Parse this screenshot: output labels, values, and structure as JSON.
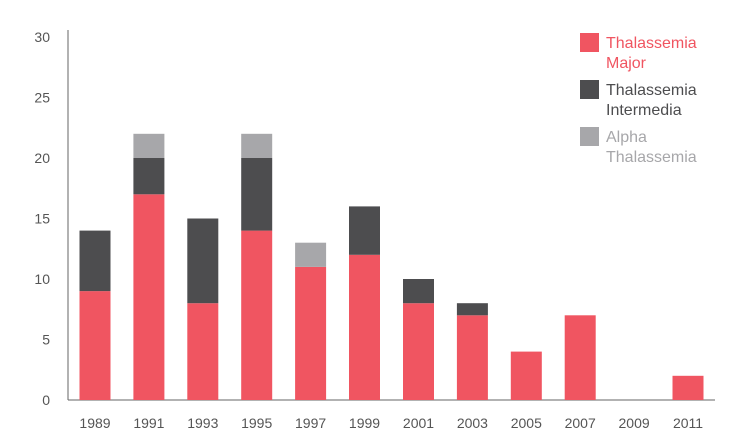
{
  "chart_data": {
    "type": "bar",
    "stacked": true,
    "title": "",
    "xlabel": "",
    "ylabel": "",
    "categories": [
      "1989",
      "1991",
      "1993",
      "1995",
      "1997",
      "1999",
      "2001",
      "2003",
      "2005",
      "2007",
      "2009",
      "2011"
    ],
    "ylim": [
      0,
      30
    ],
    "yticks": [
      0,
      5,
      10,
      15,
      20,
      25,
      30
    ],
    "grid": false,
    "legend_position": "top-right",
    "series": [
      {
        "name": "Thalassemia Major",
        "legend_lines": [
          "Thalassemia",
          "Major"
        ],
        "color": "#f05561",
        "values": [
          9,
          17,
          8,
          14,
          11,
          12,
          8,
          7,
          4,
          7,
          0,
          2
        ]
      },
      {
        "name": "Thalassemia Intermedia",
        "legend_lines": [
          "Thalassemia",
          "Intermedia"
        ],
        "color": "#4d4d4f",
        "values": [
          5,
          3,
          7,
          6,
          0,
          4,
          2,
          1,
          0,
          0,
          0,
          0
        ]
      },
      {
        "name": "Alpha Thalassemia",
        "legend_lines": [
          "Alpha",
          "Thalassemia"
        ],
        "color": "#a7a7aa",
        "values": [
          0,
          2,
          0,
          2,
          2,
          0,
          0,
          0,
          0,
          0,
          0,
          0
        ]
      }
    ]
  }
}
